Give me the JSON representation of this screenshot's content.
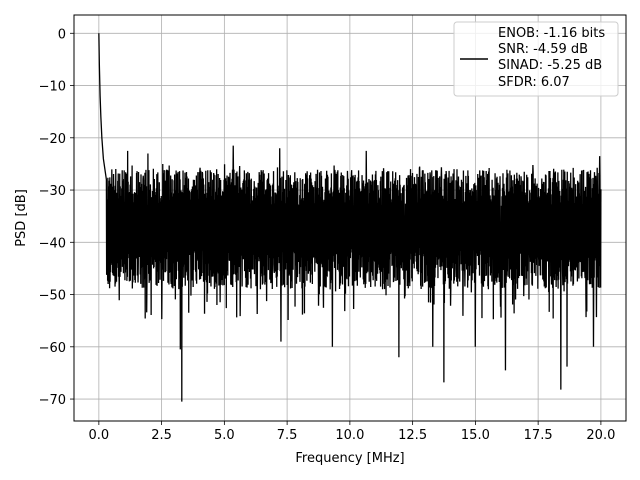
{
  "chart_data": {
    "type": "line",
    "title": "",
    "xlabel": "Frequency [MHz]",
    "ylabel": "PSD [dB]",
    "xlim": [
      -0.99,
      21.0
    ],
    "ylim": [
      -74.2,
      3.5
    ],
    "x_ticks": [
      0.0,
      2.5,
      5.0,
      7.5,
      10.0,
      12.5,
      15.0,
      17.5,
      20.0
    ],
    "x_tick_labels": [
      "0.0",
      "2.5",
      "5.0",
      "7.5",
      "10.0",
      "12.5",
      "15.0",
      "17.5",
      "20.0"
    ],
    "y_ticks": [
      0,
      -10,
      -20,
      -30,
      -40,
      -50,
      -60,
      -70
    ],
    "y_tick_labels": [
      "0",
      "−10",
      "−20",
      "−30",
      "−40",
      "−50",
      "−60",
      "−70"
    ],
    "grid": true,
    "legend_position": "top-right",
    "line_color": "#000000",
    "series": [
      {
        "legend_lines": [
          "ENOB: -1.16 bits",
          "SNR: -4.59 dB",
          "SINAD: -5.25 dB",
          "SFDR: 6.07"
        ],
        "x_range": [
          0.0,
          20.0
        ],
        "peak": {
          "x": 0.0,
          "y": 0.0
        },
        "initial_decay": [
          {
            "x": 0.0,
            "y": 0.0
          },
          {
            "x": 0.02,
            "y": -6
          },
          {
            "x": 0.05,
            "y": -12
          },
          {
            "x": 0.08,
            "y": -16
          },
          {
            "x": 0.12,
            "y": -20
          },
          {
            "x": 0.18,
            "y": -24
          },
          {
            "x": 0.3,
            "y": -28
          }
        ],
        "noise_floor_band": [
          -45,
          -26
        ],
        "notable_points": [
          {
            "x": 3.3,
            "y": -70.5
          },
          {
            "x": 3.25,
            "y": -60.5
          },
          {
            "x": 18.4,
            "y": -68.2
          },
          {
            "x": 18.65,
            "y": -63.8
          },
          {
            "x": 13.75,
            "y": -66.8
          },
          {
            "x": 16.2,
            "y": -64.5
          },
          {
            "x": 19.7,
            "y": -60.0
          },
          {
            "x": 7.25,
            "y": -59.0
          },
          {
            "x": 9.3,
            "y": -60.0
          },
          {
            "x": 11.95,
            "y": -62.0
          },
          {
            "x": 13.3,
            "y": -60.0
          },
          {
            "x": 15.0,
            "y": -60.0
          },
          {
            "x": 5.35,
            "y": -21.5
          },
          {
            "x": 7.2,
            "y": -22.0
          },
          {
            "x": 1.15,
            "y": -22.5
          },
          {
            "x": 1.95,
            "y": -23.0
          },
          {
            "x": 10.65,
            "y": -22.5
          },
          {
            "x": 19.95,
            "y": -23.5
          }
        ],
        "point_count": 2000
      }
    ]
  }
}
